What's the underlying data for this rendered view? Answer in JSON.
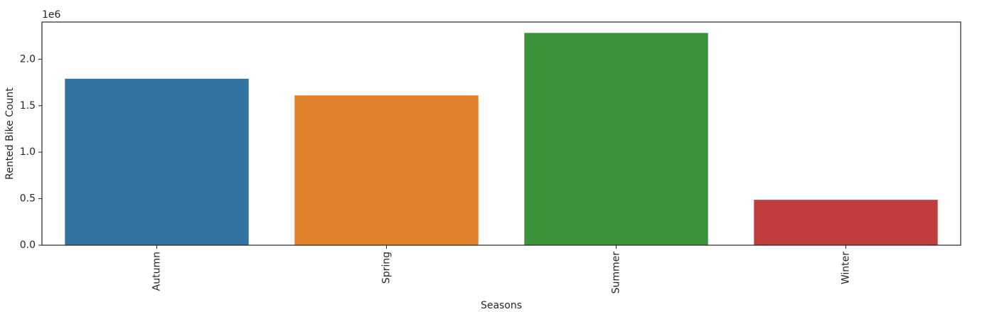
{
  "chart_data": {
    "type": "bar",
    "title": "",
    "xlabel": "Seasons",
    "ylabel": "Rented Bike Count",
    "y_offset_label": "1e6",
    "categories": [
      "Autumn",
      "Spring",
      "Summer",
      "Winter"
    ],
    "values": [
      1790000,
      1611000,
      2283000,
      488000
    ],
    "colors": [
      "#3274a1",
      "#e1812c",
      "#3a923a",
      "#c03d3e"
    ],
    "ylim": [
      0,
      2400000
    ],
    "yticks": [
      0,
      500000,
      1000000,
      1500000,
      2000000
    ],
    "ytick_labels": [
      "0.0",
      "0.5",
      "1.0",
      "1.5",
      "2.0"
    ],
    "xtick_rotation": "vertical",
    "grid": false,
    "legend": "none"
  }
}
